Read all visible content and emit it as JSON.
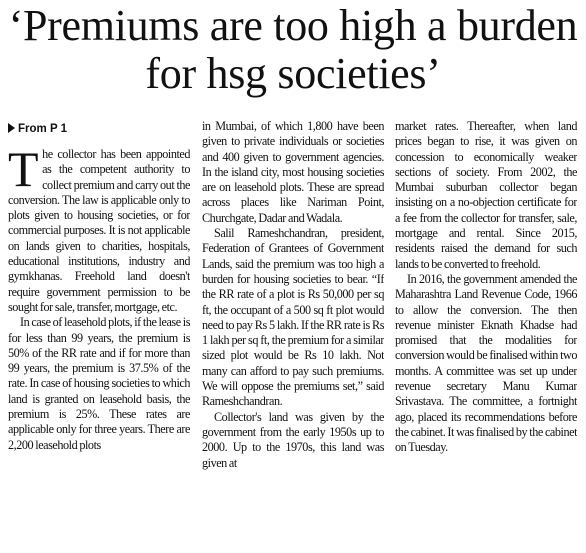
{
  "headline": "‘Premiums are too high a burden for hsg societies’",
  "jump_line": "From P 1",
  "columns": [
    {
      "paragraphs": [
        "The collector has been appointed as the competent authority to collect premium and carry out the conversion. The law is applicable only to plots given to housing societies, or for commercial purposes. It is not applicable on lands given to charities, hospitals, educational institutions, industry and gymkhanas. Freehold land doesn't require government permission to be sought for sale, transfer, mortgage, etc.",
        "In case of leasehold plots, if the lease is for less than 99 years, the premium is 50% of the RR rate and if for more than 99 years, the premium is 37.5% of the rate. In case of housing societies to which land is granted on leasehold basis, the premium is 25%. These rates are applicable only for three years. There are 2,200 leasehold plots"
      ]
    },
    {
      "paragraphs": [
        "in Mumbai, of which 1,800 have been given to private individuals or societies and 400 given to government agencies. In the island city, most housing societies are on leasehold plots. These are spread across places like Nariman Point, Churchgate, Dadar and Wadala.",
        "Salil Rameshchandran, president, Federation of Grantees of Government Lands, said the premium was too high a burden for housing societies to bear. “If the RR rate of a plot is Rs 50,000 per sq ft, the occupant of a 500 sq ft plot would need to pay Rs 5 lakh. If the RR rate is Rs 1 lakh per sq ft, the premium for a similar sized plot would be Rs 10 lakh. Not many can afford to pay such premiums. We will oppose the premiums set,” said Rameshchandran.",
        "Collector's land was given by the government from the early 1950s up to 2000. Up to the 1970s, this land was given at"
      ]
    },
    {
      "paragraphs": [
        "market rates. Thereafter, when land prices began to rise, it was given on concession to economically weaker sections of society. From 2002, the Mumbai suburban collector began insisting on a no-objection certificate for a fee from the collector for transfer, sale, mortgage and rental. Since 2015, residents raised the demand for such lands to be converted to freehold.",
        "In 2016, the government amended the Maharashtra Land Revenue Code, 1966 to allow the conversion. The then revenue minister Eknath Khadse had promised that the modalities for conversion would be finalised within two months. A committee was set up under revenue secretary Manu Kumar Srivastava. The committee, a fortnight ago, placed its recommendations before the cabinet. It was finalised by the cabinet on Tuesday."
      ]
    }
  ]
}
